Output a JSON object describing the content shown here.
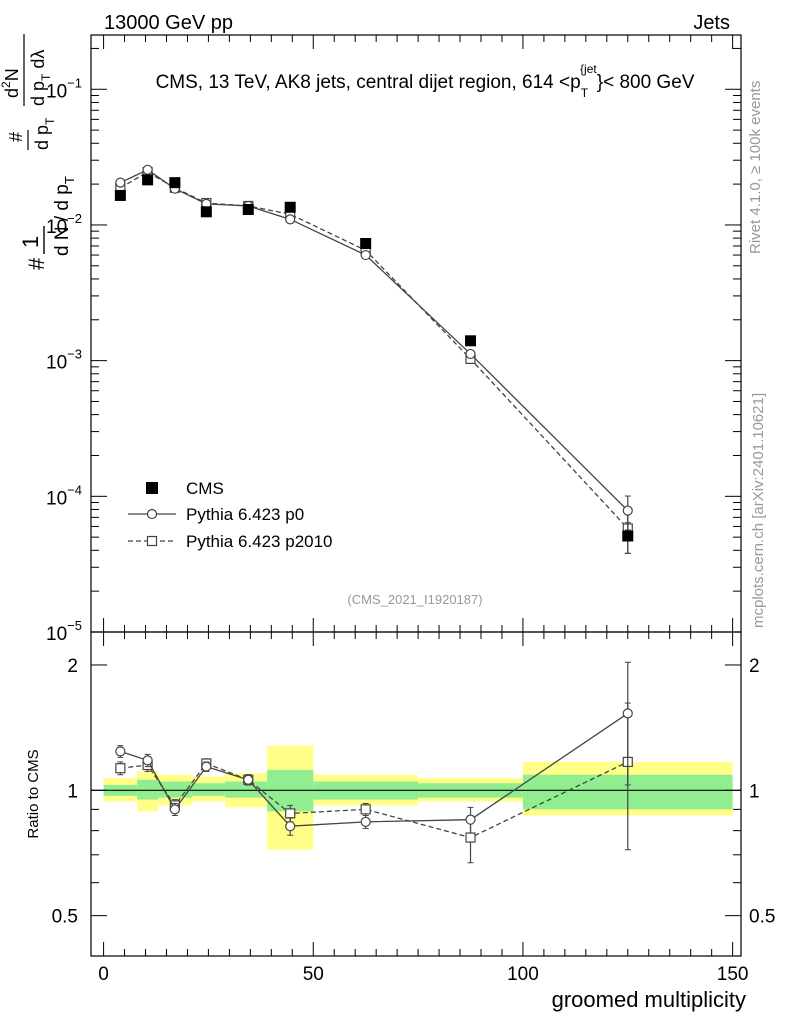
{
  "header": {
    "left": "13000 GeV pp",
    "right": "Jets"
  },
  "side_labels": {
    "rivet": "Rivet 4.1.0, ≥ 100k events",
    "mcplots": "mcplots.cern.ch [arXiv:2401.10621]"
  },
  "chart_data": [
    {
      "type": "scatter",
      "title": "CMS, 13 TeV, AK8 jets, central dijet region, 614 <p_T^{jet}< 800 GeV",
      "ylabel": "1/(dN/dpT) d²N/(dpT dλ)",
      "ylog": true,
      "xlim": [
        -3,
        152
      ],
      "ylim_exp": [
        -5,
        -0.6
      ],
      "yticks": [
        {
          "base": "10",
          "exp": "−5"
        },
        {
          "base": "10",
          "exp": "−4"
        },
        {
          "base": "10",
          "exp": "−3"
        },
        {
          "base": "10",
          "exp": "−2"
        },
        {
          "base": "10",
          "exp": "−1"
        }
      ],
      "watermark": "(CMS_2021_I1920187)",
      "x": [
        4,
        10.5,
        17,
        24.5,
        34.5,
        44.5,
        62.5,
        87.5,
        125
      ],
      "series": [
        {
          "name": "CMS",
          "style": "filled-square",
          "values": [
            0.0165,
            0.0215,
            0.0205,
            0.0125,
            0.013,
            0.0135,
            0.0073,
            0.0014,
            5.1e-05
          ],
          "errors": [
            0.0008,
            0.001,
            0.001,
            0.0006,
            0.0006,
            0.0007,
            0.0004,
            0.0001,
            1.3e-05
          ]
        },
        {
          "name": "Pythia 6.423 p0",
          "style": "open-circle-solid",
          "values": [
            0.0205,
            0.0255,
            0.0185,
            0.0143,
            0.0138,
            0.011,
            0.006,
            0.00112,
            7.85e-05
          ],
          "errors": [
            0.0005,
            0.0006,
            0.0005,
            0.0004,
            0.0004,
            0.0004,
            0.0002,
            5e-05,
            2.2e-05
          ]
        },
        {
          "name": "Pythia 6.423 p2010",
          "style": "open-square-dashed",
          "values": [
            0.0188,
            0.0245,
            0.0188,
            0.0145,
            0.0138,
            0.012,
            0.0065,
            0.00103,
            5.8e-05
          ],
          "errors": [
            0.0005,
            0.0006,
            0.0005,
            0.0004,
            0.0004,
            0.0004,
            0.0002,
            5e-05,
            2e-05
          ]
        }
      ],
      "legend": {
        "placement": "bottom-left",
        "entries": [
          "CMS",
          "Pythia 6.423 p0",
          "Pythia 6.423 p2010"
        ]
      }
    },
    {
      "type": "scatter",
      "title": "",
      "ylabel": "Ratio to CMS",
      "xlabel": "groomed multiplicity",
      "ylog": true,
      "ylim": [
        0.4,
        2.4
      ],
      "xlim": [
        -3,
        152
      ],
      "xticks": [
        0,
        50,
        100,
        150
      ],
      "yticks": [
        0.5,
        1,
        2
      ],
      "ytick_labels": [
        "0.5",
        "1",
        "2"
      ],
      "bands": {
        "edges": [
          0,
          8,
          13,
          21,
          29,
          39,
          50,
          75,
          100,
          150
        ],
        "green": [
          [
            0.97,
            1.03
          ],
          [
            0.95,
            1.06
          ],
          [
            0.96,
            1.05
          ],
          [
            0.97,
            1.04
          ],
          [
            0.96,
            1.05
          ],
          [
            0.89,
            1.12
          ],
          [
            0.95,
            1.05
          ],
          [
            0.96,
            1.04
          ],
          [
            0.9,
            1.09
          ]
        ],
        "yellow": [
          [
            0.94,
            1.07
          ],
          [
            0.89,
            1.11
          ],
          [
            0.92,
            1.09
          ],
          [
            0.94,
            1.08
          ],
          [
            0.91,
            1.1
          ],
          [
            0.72,
            1.28
          ],
          [
            0.92,
            1.09
          ],
          [
            0.94,
            1.07
          ],
          [
            0.87,
            1.17
          ]
        ]
      },
      "x": [
        4,
        10.5,
        17,
        24.5,
        34.5,
        44.5,
        62.5,
        87.5,
        125
      ],
      "series": [
        {
          "name": "Pythia 6.423 p0",
          "style": "open-circle-solid",
          "values": [
            1.24,
            1.18,
            0.9,
            1.14,
            1.06,
            0.82,
            0.84,
            0.85,
            1.53
          ],
          "errors": [
            0.04,
            0.04,
            0.03,
            0.03,
            0.03,
            0.04,
            0.03,
            0.06,
            0.5
          ]
        },
        {
          "name": "Pythia 6.423 p2010",
          "style": "open-square-dashed",
          "values": [
            1.13,
            1.15,
            0.92,
            1.16,
            1.06,
            0.88,
            0.9,
            0.77,
            1.17
          ],
          "errors": [
            0.04,
            0.04,
            0.03,
            0.03,
            0.03,
            0.04,
            0.03,
            0.1,
            0.45
          ]
        }
      ]
    }
  ]
}
